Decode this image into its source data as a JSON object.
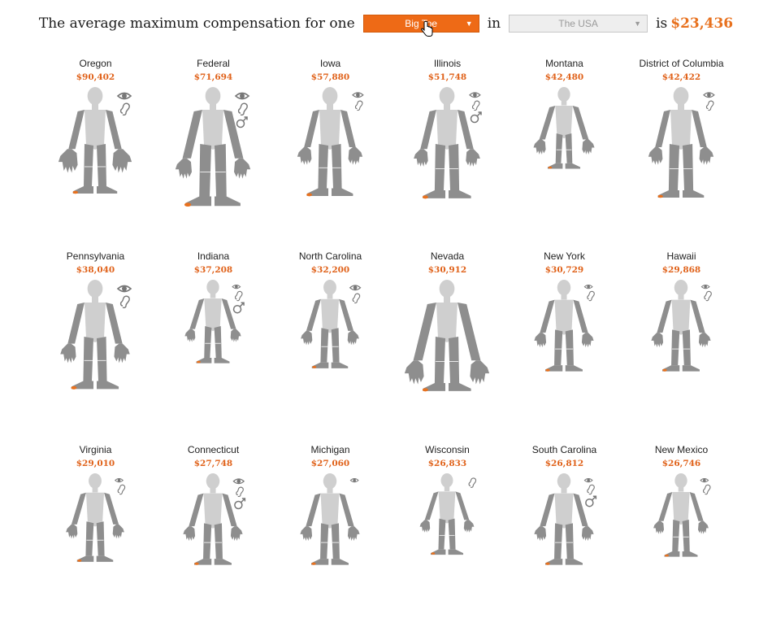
{
  "header": {
    "sentence": "The average maximum compensation for one",
    "part_select_value": "Big Toe",
    "connector": "in",
    "place_select_value": "The USA",
    "is_label": "is",
    "total": "$23,436"
  },
  "colors": {
    "accent": "#ee6a16",
    "body_dark": "#8e8e8e",
    "body_light": "#cfcfcf",
    "toe": "#e8711e"
  },
  "states": [
    {
      "name": "Oregon",
      "amount": "$90,402",
      "scale": 1.0,
      "arms": 1.05,
      "legs": 1.0,
      "hands": 1.35,
      "feet": 1.0,
      "eye": "big",
      "ear": true,
      "male": false
    },
    {
      "name": "Federal",
      "amount": "$71,694",
      "scale": 1.0,
      "arms": 1.3,
      "legs": 1.25,
      "hands": 1.15,
      "feet": 1.3,
      "eye": "big",
      "ear": true,
      "male": true
    },
    {
      "name": "Iowa",
      "amount": "$57,880",
      "scale": 1.0,
      "arms": 1.0,
      "legs": 1.05,
      "hands": 1.0,
      "feet": 1.05,
      "eye": "mid",
      "ear": true,
      "male": false
    },
    {
      "name": "Illinois",
      "amount": "$51,748",
      "scale": 1.0,
      "arms": 1.05,
      "legs": 1.1,
      "hands": 1.0,
      "feet": 1.1,
      "eye": "mid",
      "ear": true,
      "male": true
    },
    {
      "name": "Montana",
      "amount": "$42,480",
      "scale": 0.82,
      "arms": 1.1,
      "legs": 0.85,
      "hands": 1.05,
      "feet": 0.9,
      "eye": "none",
      "ear": false,
      "male": false
    },
    {
      "name": "District of Columbia",
      "amount": "$42,422",
      "scale": 1.0,
      "arms": 1.0,
      "legs": 1.1,
      "hands": 1.0,
      "feet": 1.0,
      "eye": "mid",
      "ear": true,
      "male": false
    },
    {
      "name": "Pennsylvania",
      "amount": "$38,040",
      "scale": 1.0,
      "arms": 1.1,
      "legs": 1.05,
      "hands": 1.1,
      "feet": 1.1,
      "eye": "big",
      "ear": true,
      "male": false
    },
    {
      "name": "Indiana",
      "amount": "$37,208",
      "scale": 0.82,
      "arms": 1.0,
      "legs": 0.9,
      "hands": 0.9,
      "feet": 0.9,
      "eye": "small",
      "ear": true,
      "male": true
    },
    {
      "name": "North Carolina",
      "amount": "$32,200",
      "scale": 0.85,
      "arms": 1.0,
      "legs": 0.95,
      "hands": 0.95,
      "feet": 0.95,
      "eye": "mid",
      "ear": true,
      "male": false
    },
    {
      "name": "Nevada",
      "amount": "$30,912",
      "scale": 1.0,
      "arms": 1.55,
      "legs": 1.1,
      "hands": 1.35,
      "feet": 1.1,
      "eye": "none",
      "ear": false,
      "male": false
    },
    {
      "name": "New York",
      "amount": "$30,729",
      "scale": 0.88,
      "arms": 1.0,
      "legs": 0.95,
      "hands": 0.95,
      "feet": 0.95,
      "eye": "small",
      "ear": true,
      "male": false
    },
    {
      "name": "Hawaii",
      "amount": "$29,868",
      "scale": 0.88,
      "arms": 1.0,
      "legs": 0.95,
      "hands": 0.95,
      "feet": 0.95,
      "eye": "small",
      "ear": true,
      "male": false
    },
    {
      "name": "Virginia",
      "amount": "$29,010",
      "scale": 0.85,
      "arms": 1.0,
      "legs": 0.95,
      "hands": 0.95,
      "feet": 0.95,
      "eye": "small",
      "ear": true,
      "male": false
    },
    {
      "name": "Connecticut",
      "amount": "$27,748",
      "scale": 0.88,
      "arms": 1.0,
      "legs": 0.95,
      "hands": 0.95,
      "feet": 0.95,
      "eye": "mid",
      "ear": true,
      "male": true
    },
    {
      "name": "Michigan",
      "amount": "$27,060",
      "scale": 0.88,
      "arms": 1.0,
      "legs": 0.95,
      "hands": 0.95,
      "feet": 0.95,
      "eye": "small",
      "ear": false,
      "male": false
    },
    {
      "name": "Wisconsin",
      "amount": "$26,833",
      "scale": 0.8,
      "arms": 0.95,
      "legs": 0.9,
      "hands": 0.9,
      "feet": 0.9,
      "eye": "none",
      "ear": true,
      "male": false
    },
    {
      "name": "South Carolina",
      "amount": "$26,812",
      "scale": 0.88,
      "arms": 1.0,
      "legs": 0.95,
      "hands": 0.95,
      "feet": 0.95,
      "eye": "small",
      "ear": true,
      "male": true
    },
    {
      "name": "New Mexico",
      "amount": "$26,746",
      "scale": 0.82,
      "arms": 0.95,
      "legs": 0.9,
      "hands": 0.9,
      "feet": 0.9,
      "eye": "small",
      "ear": true,
      "male": false
    }
  ]
}
